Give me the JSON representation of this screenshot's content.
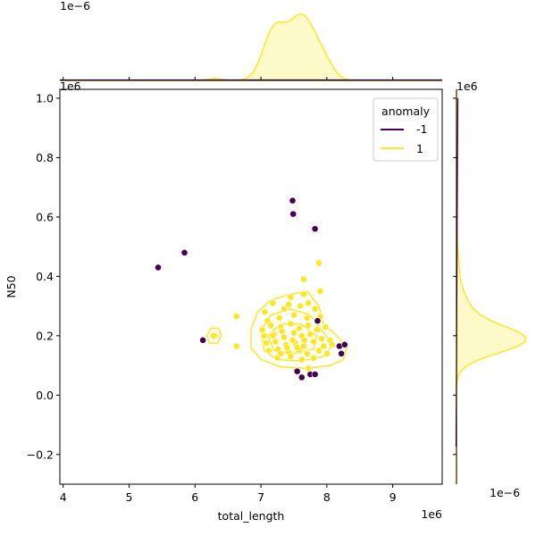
{
  "chart_data": {
    "type": "scatter",
    "xlabel": "total_length",
    "ylabel": "N50",
    "xlim": [
      3.95,
      9.75
    ],
    "ylim": [
      -0.3,
      1.03
    ],
    "x_ticks": [
      4,
      5,
      6,
      7,
      8,
      9
    ],
    "y_ticks": [
      -0.2,
      0.0,
      0.2,
      0.4,
      0.6,
      0.8,
      1.0
    ],
    "x_tick_labels": [
      "4",
      "5",
      "6",
      "7",
      "8",
      "9"
    ],
    "y_tick_labels": [
      "−0.2",
      "0.0",
      "0.2",
      "0.4",
      "0.6",
      "0.8",
      "1.0"
    ],
    "x_offset_text": "1e6",
    "y_offset_text": "1e6",
    "top_marginal_offset_text": "1e−6",
    "right_marginal_offset_text": "1e−6",
    "right_marginal_y_offset_text": "1e6",
    "grid": false,
    "legend": {
      "title": "anomaly",
      "placement": "top-right",
      "entries": [
        {
          "label": "-1",
          "color": "#440154"
        },
        {
          "label": "1",
          "color": "#fde725"
        }
      ]
    },
    "series": [
      {
        "name": "-1",
        "color": "#440154",
        "points": [
          [
            5.44,
            0.43
          ],
          [
            5.84,
            0.48
          ],
          [
            6.12,
            0.185
          ],
          [
            7.48,
            0.655
          ],
          [
            7.49,
            0.61
          ],
          [
            7.82,
            0.56
          ],
          [
            7.86,
            0.25
          ],
          [
            7.55,
            0.08
          ],
          [
            7.62,
            0.06
          ],
          [
            7.75,
            0.07
          ],
          [
            7.82,
            0.07
          ],
          [
            8.19,
            0.165
          ],
          [
            8.22,
            0.14
          ],
          [
            8.27,
            0.17
          ]
        ]
      },
      {
        "name": "1",
        "color": "#fde725",
        "points": [
          [
            6.28,
            0.2
          ],
          [
            6.63,
            0.265
          ],
          [
            6.63,
            0.165
          ],
          [
            7.88,
            0.445
          ],
          [
            7.65,
            0.39
          ],
          [
            7.45,
            0.33
          ],
          [
            7.65,
            0.34
          ],
          [
            7.9,
            0.35
          ],
          [
            7.18,
            0.31
          ],
          [
            7.42,
            0.305
          ],
          [
            7.72,
            0.31
          ],
          [
            7.06,
            0.28
          ],
          [
            7.35,
            0.29
          ],
          [
            7.6,
            0.3
          ],
          [
            7.82,
            0.29
          ],
          [
            7.1,
            0.25
          ],
          [
            7.28,
            0.26
          ],
          [
            7.5,
            0.27
          ],
          [
            7.7,
            0.26
          ],
          [
            7.9,
            0.265
          ],
          [
            7.02,
            0.22
          ],
          [
            7.15,
            0.235
          ],
          [
            7.3,
            0.23
          ],
          [
            7.45,
            0.24
          ],
          [
            7.58,
            0.225
          ],
          [
            7.72,
            0.235
          ],
          [
            7.85,
            0.22
          ],
          [
            7.98,
            0.23
          ],
          [
            7.05,
            0.2
          ],
          [
            7.2,
            0.205
          ],
          [
            7.35,
            0.195
          ],
          [
            7.5,
            0.21
          ],
          [
            7.62,
            0.2
          ],
          [
            7.75,
            0.205
          ],
          [
            7.92,
            0.19
          ],
          [
            8.05,
            0.185
          ],
          [
            7.08,
            0.175
          ],
          [
            7.22,
            0.18
          ],
          [
            7.38,
            0.17
          ],
          [
            7.52,
            0.175
          ],
          [
            7.65,
            0.165
          ],
          [
            7.8,
            0.18
          ],
          [
            7.95,
            0.165
          ],
          [
            8.08,
            0.17
          ],
          [
            7.12,
            0.15
          ],
          [
            7.26,
            0.155
          ],
          [
            7.42,
            0.145
          ],
          [
            7.58,
            0.15
          ],
          [
            7.7,
            0.14
          ],
          [
            7.88,
            0.15
          ],
          [
            8.0,
            0.14
          ],
          [
            7.25,
            0.125
          ],
          [
            7.45,
            0.13
          ],
          [
            7.62,
            0.12
          ],
          [
            7.8,
            0.125
          ],
          [
            7.72,
            0.09
          ],
          [
            7.18,
            0.2
          ],
          [
            7.32,
            0.215
          ],
          [
            7.48,
            0.185
          ],
          [
            7.66,
            0.185
          ],
          [
            7.4,
            0.16
          ],
          [
            7.55,
            0.16
          ],
          [
            7.3,
            0.14
          ]
        ]
      }
    ],
    "marginal_top": {
      "series": "1",
      "note": "kde of total_length"
    },
    "marginal_right": {
      "series": "1",
      "note": "kde of N50"
    }
  }
}
